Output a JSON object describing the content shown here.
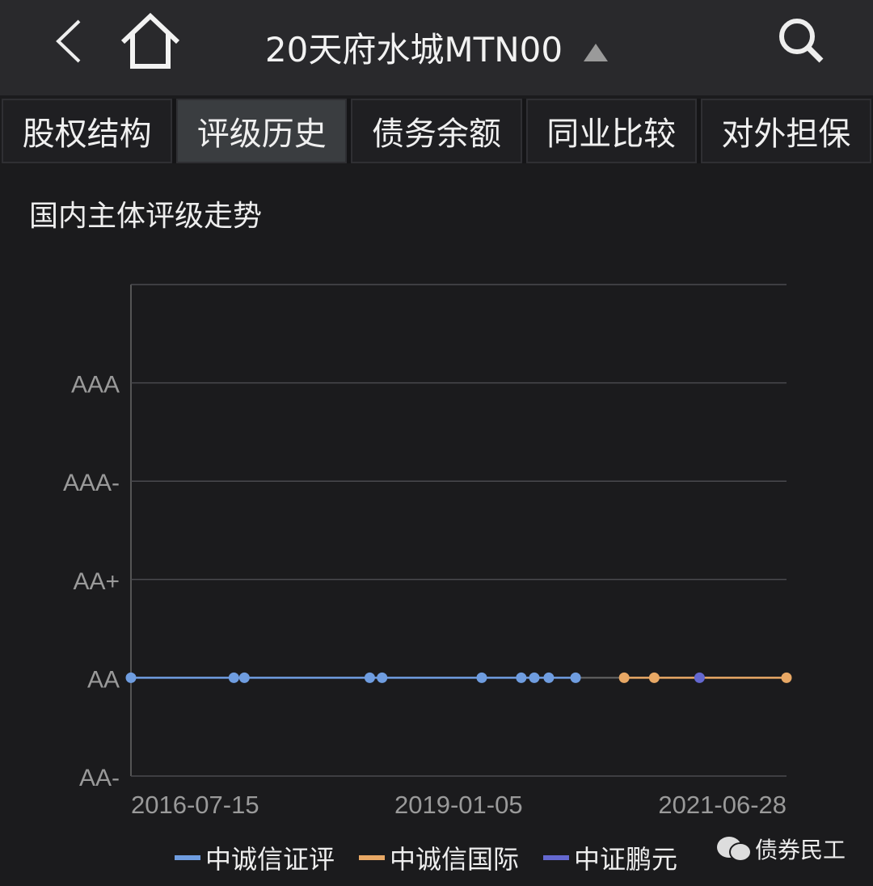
{
  "header": {
    "title": "20天府水城MTN00",
    "back_icon": "chevron-left-icon",
    "home_icon": "home-icon",
    "search_icon": "search-icon",
    "expand_icon": "triangle-up-icon"
  },
  "tabs": [
    {
      "label": "股权结构",
      "active": false
    },
    {
      "label": "评级历史",
      "active": true
    },
    {
      "label": "债务余额",
      "active": false
    },
    {
      "label": "同业比较",
      "active": false
    },
    {
      "label": "对外担保",
      "active": false
    }
  ],
  "watermark": "债券民工",
  "chart_data": {
    "type": "line",
    "title": "国内主体评级走势",
    "x_ticks": [
      "2016-07-15",
      "2019-01-05",
      "2021-06-28"
    ],
    "xlim": [
      "2016-07-15",
      "2021-06-28"
    ],
    "y_categories": [
      "AA-",
      "AA",
      "AA+",
      "AAA-",
      "AAA",
      ""
    ],
    "grid": true,
    "legend_position": "bottom",
    "series": [
      {
        "name": "中诚信证评",
        "color": "#6f9de0",
        "points": [
          [
            "2016-07-15",
            "AA"
          ],
          [
            "2017-04-25",
            "AA"
          ],
          [
            "2017-05-24",
            "AA"
          ],
          [
            "2018-05-05",
            "AA"
          ],
          [
            "2018-06-08",
            "AA"
          ],
          [
            "2019-03-10",
            "AA"
          ],
          [
            "2019-06-27",
            "AA"
          ],
          [
            "2019-08-02",
            "AA"
          ],
          [
            "2019-09-11",
            "AA"
          ],
          [
            "2019-11-24",
            "AA"
          ]
        ]
      },
      {
        "name": "中诚信国际",
        "color": "#e8a865",
        "points": [
          [
            "2020-04-06",
            "AA"
          ],
          [
            "2020-06-28",
            "AA"
          ],
          [
            "2021-06-28",
            "AA"
          ]
        ]
      },
      {
        "name": "中证鹏元",
        "color": "#6468d0",
        "points": [
          [
            "2020-10-31",
            "AA"
          ]
        ]
      }
    ]
  }
}
